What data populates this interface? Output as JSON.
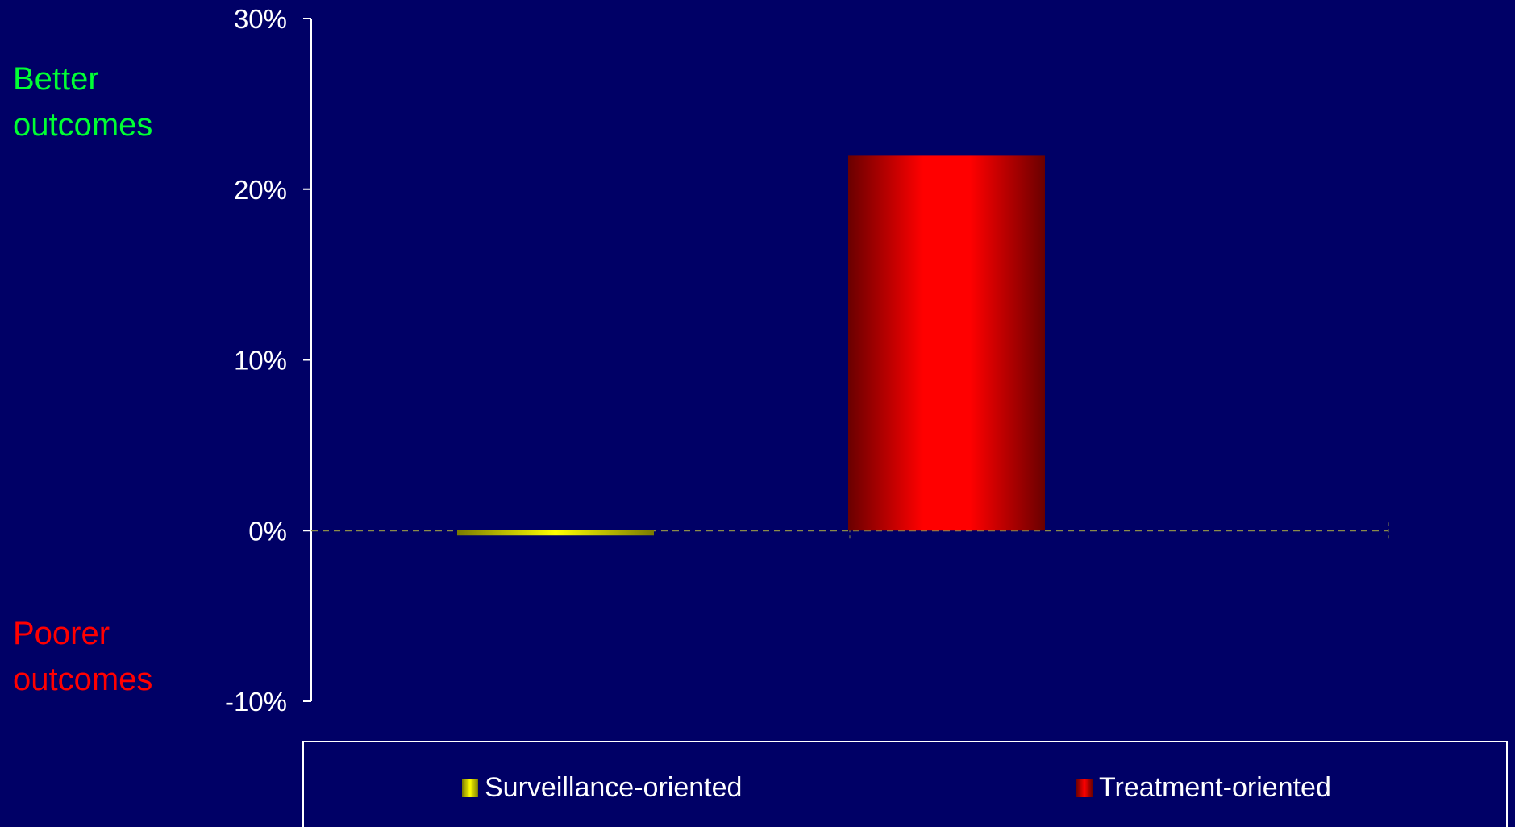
{
  "colors": {
    "background": "#000066",
    "better": "#00ff33",
    "poorer": "#ff0000",
    "axis": "#ffffff",
    "zero_line": "#8a8a4a",
    "surveillance": "#ffff00",
    "treatment": "#ff0000"
  },
  "annotations": {
    "better": "Better outcomes",
    "poorer": "Poorer outcomes"
  },
  "chart_data": {
    "type": "bar",
    "categories": [
      "Surveillance-oriented",
      "Treatment-oriented"
    ],
    "series": [
      {
        "name": "Surveillance-oriented",
        "values": [
          -0.3,
          null
        ]
      },
      {
        "name": "Treatment-oriented",
        "values": [
          null,
          22
        ]
      }
    ],
    "y_ticks": [
      "30%",
      "20%",
      "10%",
      "0%",
      "-10%"
    ],
    "ylim": [
      -10,
      30
    ],
    "y_unit": "%",
    "grid": false,
    "zero_line": "dashed",
    "legend": "bottom",
    "title": "",
    "xlabel": "",
    "ylabel": ""
  }
}
